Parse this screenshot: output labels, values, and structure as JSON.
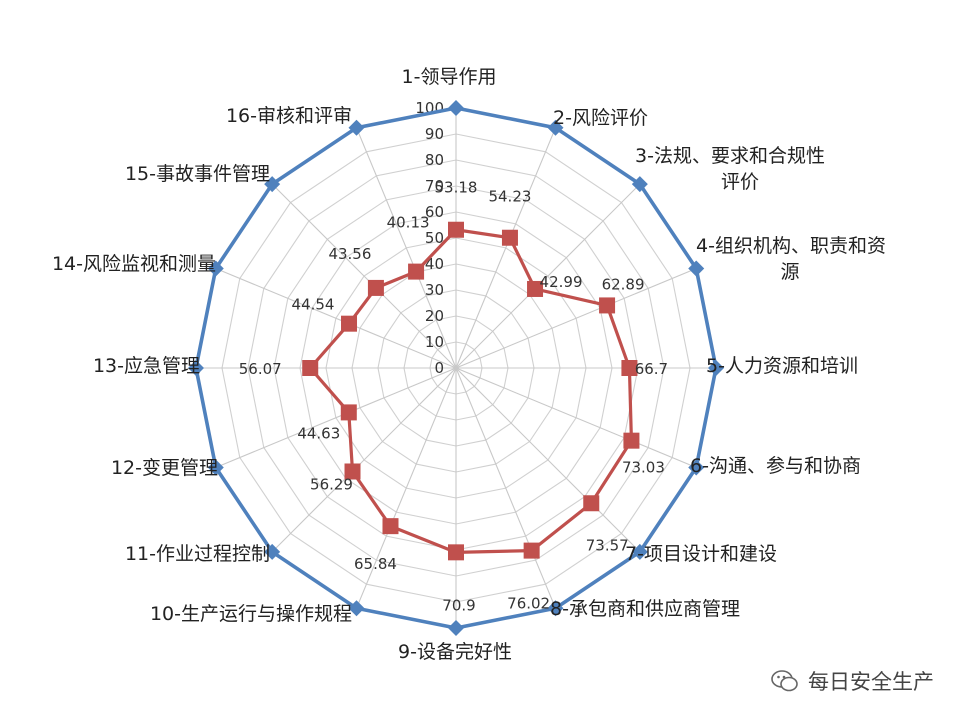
{
  "chart_data": {
    "type": "radar",
    "categories": [
      [
        "1-领导作用"
      ],
      [
        "2-风险评价"
      ],
      [
        "3-法规、要求和合规性",
        "评价"
      ],
      [
        "4-组织机构、职责和资",
        "源"
      ],
      [
        "5-人力资源和培训"
      ],
      [
        "6-沟通、参与和协商"
      ],
      [
        "7-项目设计和建设"
      ],
      [
        "8-承包商和供应商管理"
      ],
      [
        "9-设备完好性"
      ],
      [
        "10-生产运行与操作规程"
      ],
      [
        "11-作业过程控制"
      ],
      [
        "12-变更管理"
      ],
      [
        "13-应急管理"
      ],
      [
        "14-风险监视和测量"
      ],
      [
        "15-事故事件管理"
      ],
      [
        "16-审核和评审"
      ]
    ],
    "series": [
      {
        "color": "#c0504d",
        "values": [
          53.18,
          54.23,
          42.99,
          62.89,
          66.7,
          73.03,
          73.57,
          76.02,
          70.9,
          65.84,
          56.29,
          44.63,
          56.07,
          44.54,
          43.56,
          40.13
        ]
      },
      {
        "color": "#4f81bd",
        "values": [
          100,
          100,
          100,
          100,
          100,
          100,
          100,
          100,
          100,
          100,
          100,
          100,
          100,
          100,
          100,
          100
        ]
      }
    ],
    "data_labels": [
      "53.18",
      "54.23",
      "42.99",
      "62.89",
      "66.7",
      "73.03",
      "73.57",
      "76.02",
      "70.9",
      "65.84",
      "56.29",
      "44.63",
      "56.07",
      "44.54",
      "43.56",
      "40.13"
    ],
    "r_ticks": [
      "0",
      "10",
      "20",
      "30",
      "40",
      "50",
      "60",
      "70",
      "80",
      "90",
      "100"
    ],
    "rlim": [
      0,
      100
    ],
    "grid": true
  },
  "watermark": {
    "text": "每日安全生产",
    "icon": "wechat-icon"
  }
}
